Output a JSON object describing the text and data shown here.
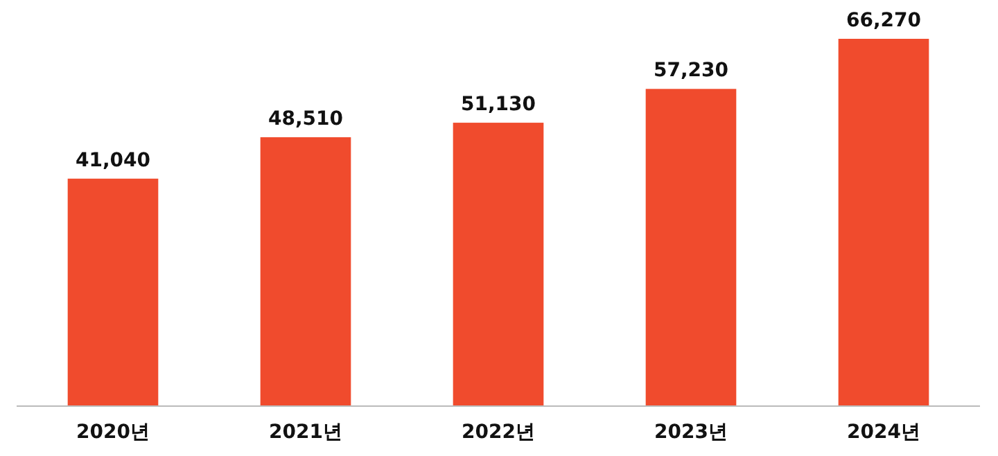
{
  "chart_data": {
    "type": "bar",
    "categories": [
      "2020년",
      "2021년",
      "2022년",
      "2023년",
      "2024년"
    ],
    "values": [
      41040,
      48510,
      51130,
      57230,
      66270
    ],
    "value_labels": [
      "41,040",
      "48,510",
      "51,130",
      "57,230",
      "66,270"
    ],
    "color": "#f04b2d"
  }
}
